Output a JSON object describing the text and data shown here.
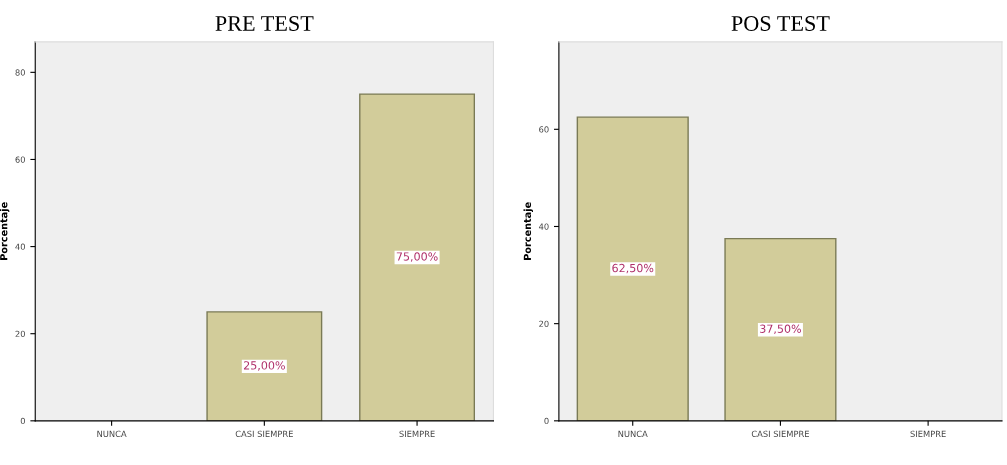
{
  "chart_data": [
    {
      "type": "bar",
      "title": "PRE TEST",
      "ylabel": "Porcentaje",
      "categories": [
        "NUNCA",
        "CASI SIEMPRE",
        "SIEMPRE"
      ],
      "values": [
        0,
        25,
        75
      ],
      "value_labels": [
        null,
        "25,00%",
        "75,00%"
      ],
      "color": "#d2cc9a",
      "ylim": [
        0,
        87
      ],
      "yticks": [
        0,
        20,
        40,
        60,
        80
      ],
      "grid": false,
      "legend": false
    },
    {
      "type": "bar",
      "title": "POS TEST",
      "ylabel": "Porcentaje",
      "categories": [
        "NUNCA",
        "CASI SIEMPRE",
        "SIEMPRE"
      ],
      "values": [
        62.5,
        37.5,
        0
      ],
      "value_labels": [
        "62,50%",
        "37,50%",
        null
      ],
      "color": "#d2cc9a",
      "ylim": [
        0,
        78
      ],
      "yticks": [
        0,
        20,
        40,
        60
      ],
      "grid": false,
      "legend": false
    }
  ]
}
